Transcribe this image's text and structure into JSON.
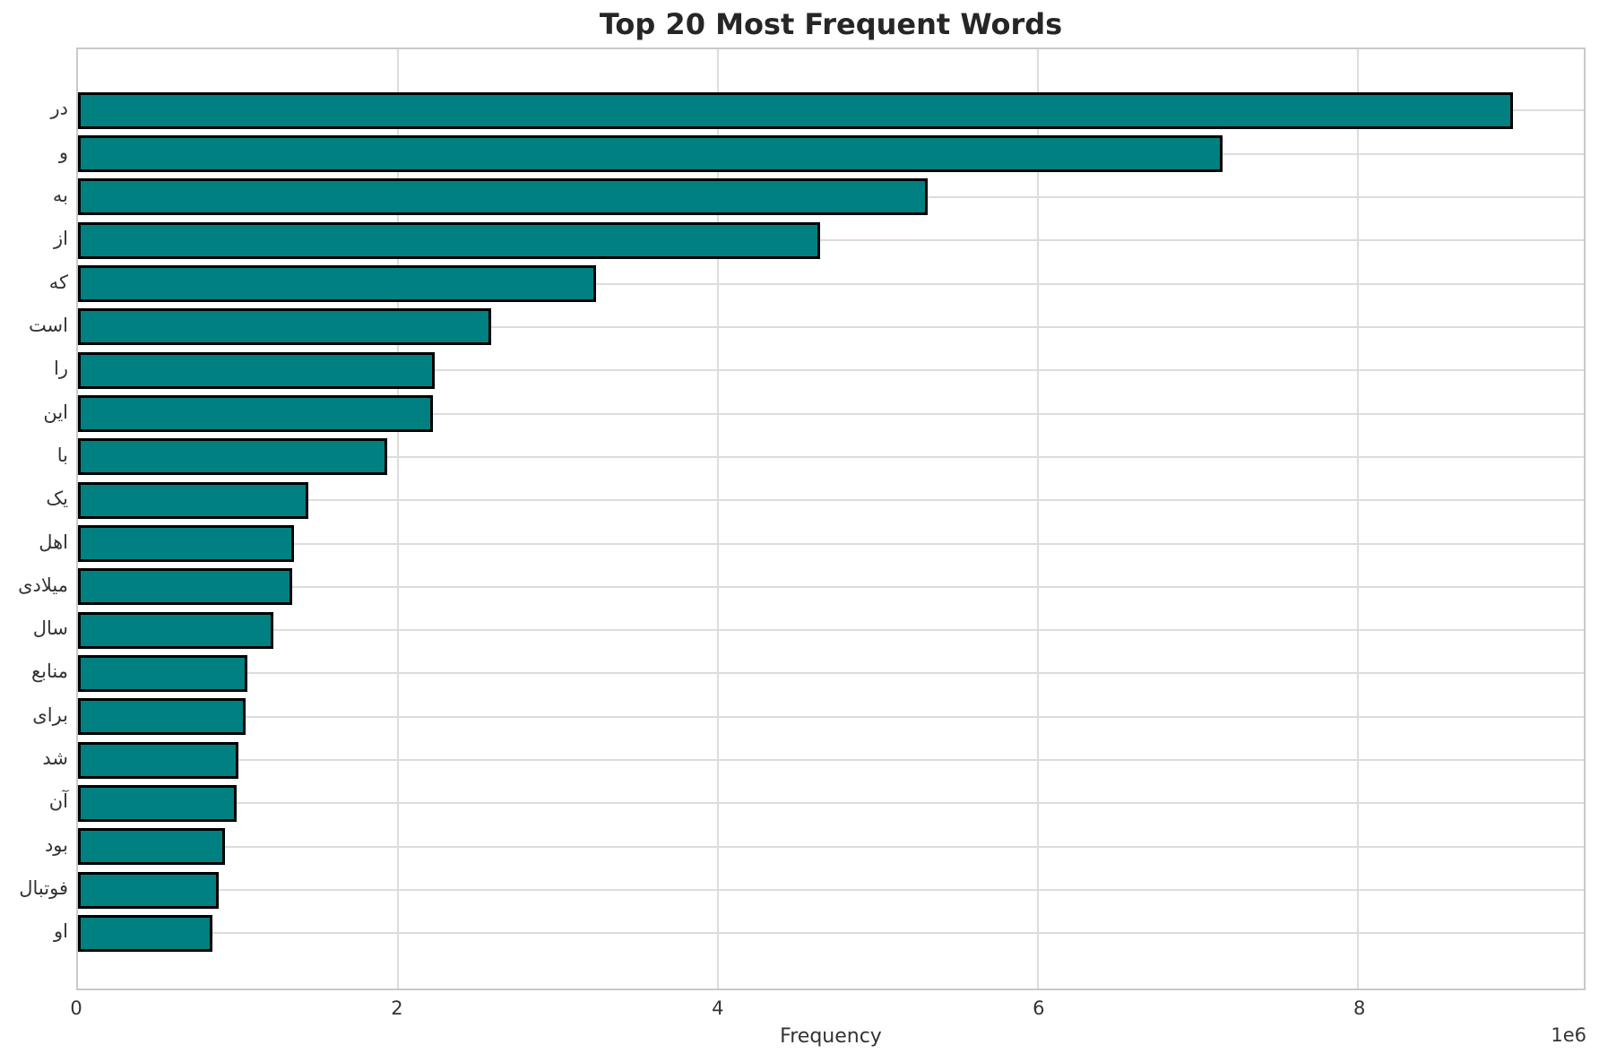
{
  "colors": {
    "bar_fill": "#008080",
    "bar_edge": "#000000",
    "grid": "#dcdcdc",
    "spine": "#c9c9c9",
    "title_text": "#262626",
    "tick_text": "#333333",
    "background": "#ffffff"
  },
  "chart_data": {
    "type": "bar",
    "orientation": "horizontal",
    "title": "Top 20 Most Frequent Words",
    "xlabel": "Frequency",
    "ylabel": "",
    "offset_text": "1e6",
    "grid": true,
    "legend": false,
    "categories": [
      "در",
      "و",
      "به",
      "از",
      "که",
      "است",
      "را",
      "این",
      "با",
      "یک",
      "اهل",
      "میلادی",
      "سال",
      "منابع",
      "برای",
      "شد",
      "آن",
      "بود",
      "فوتبال",
      "او"
    ],
    "values": [
      8970000,
      7150000,
      5310000,
      4640000,
      3240000,
      2580000,
      2230000,
      2220000,
      1930000,
      1440000,
      1350000,
      1340000,
      1220000,
      1060000,
      1050000,
      1000000,
      990000,
      920000,
      880000,
      840000
    ],
    "x_ticks": [
      0,
      2,
      4,
      6,
      8
    ],
    "x_tick_unit": 1000000,
    "xlim": [
      0,
      9410000
    ],
    "bar_color": "#008080",
    "bar_edge_color": "#000000"
  }
}
